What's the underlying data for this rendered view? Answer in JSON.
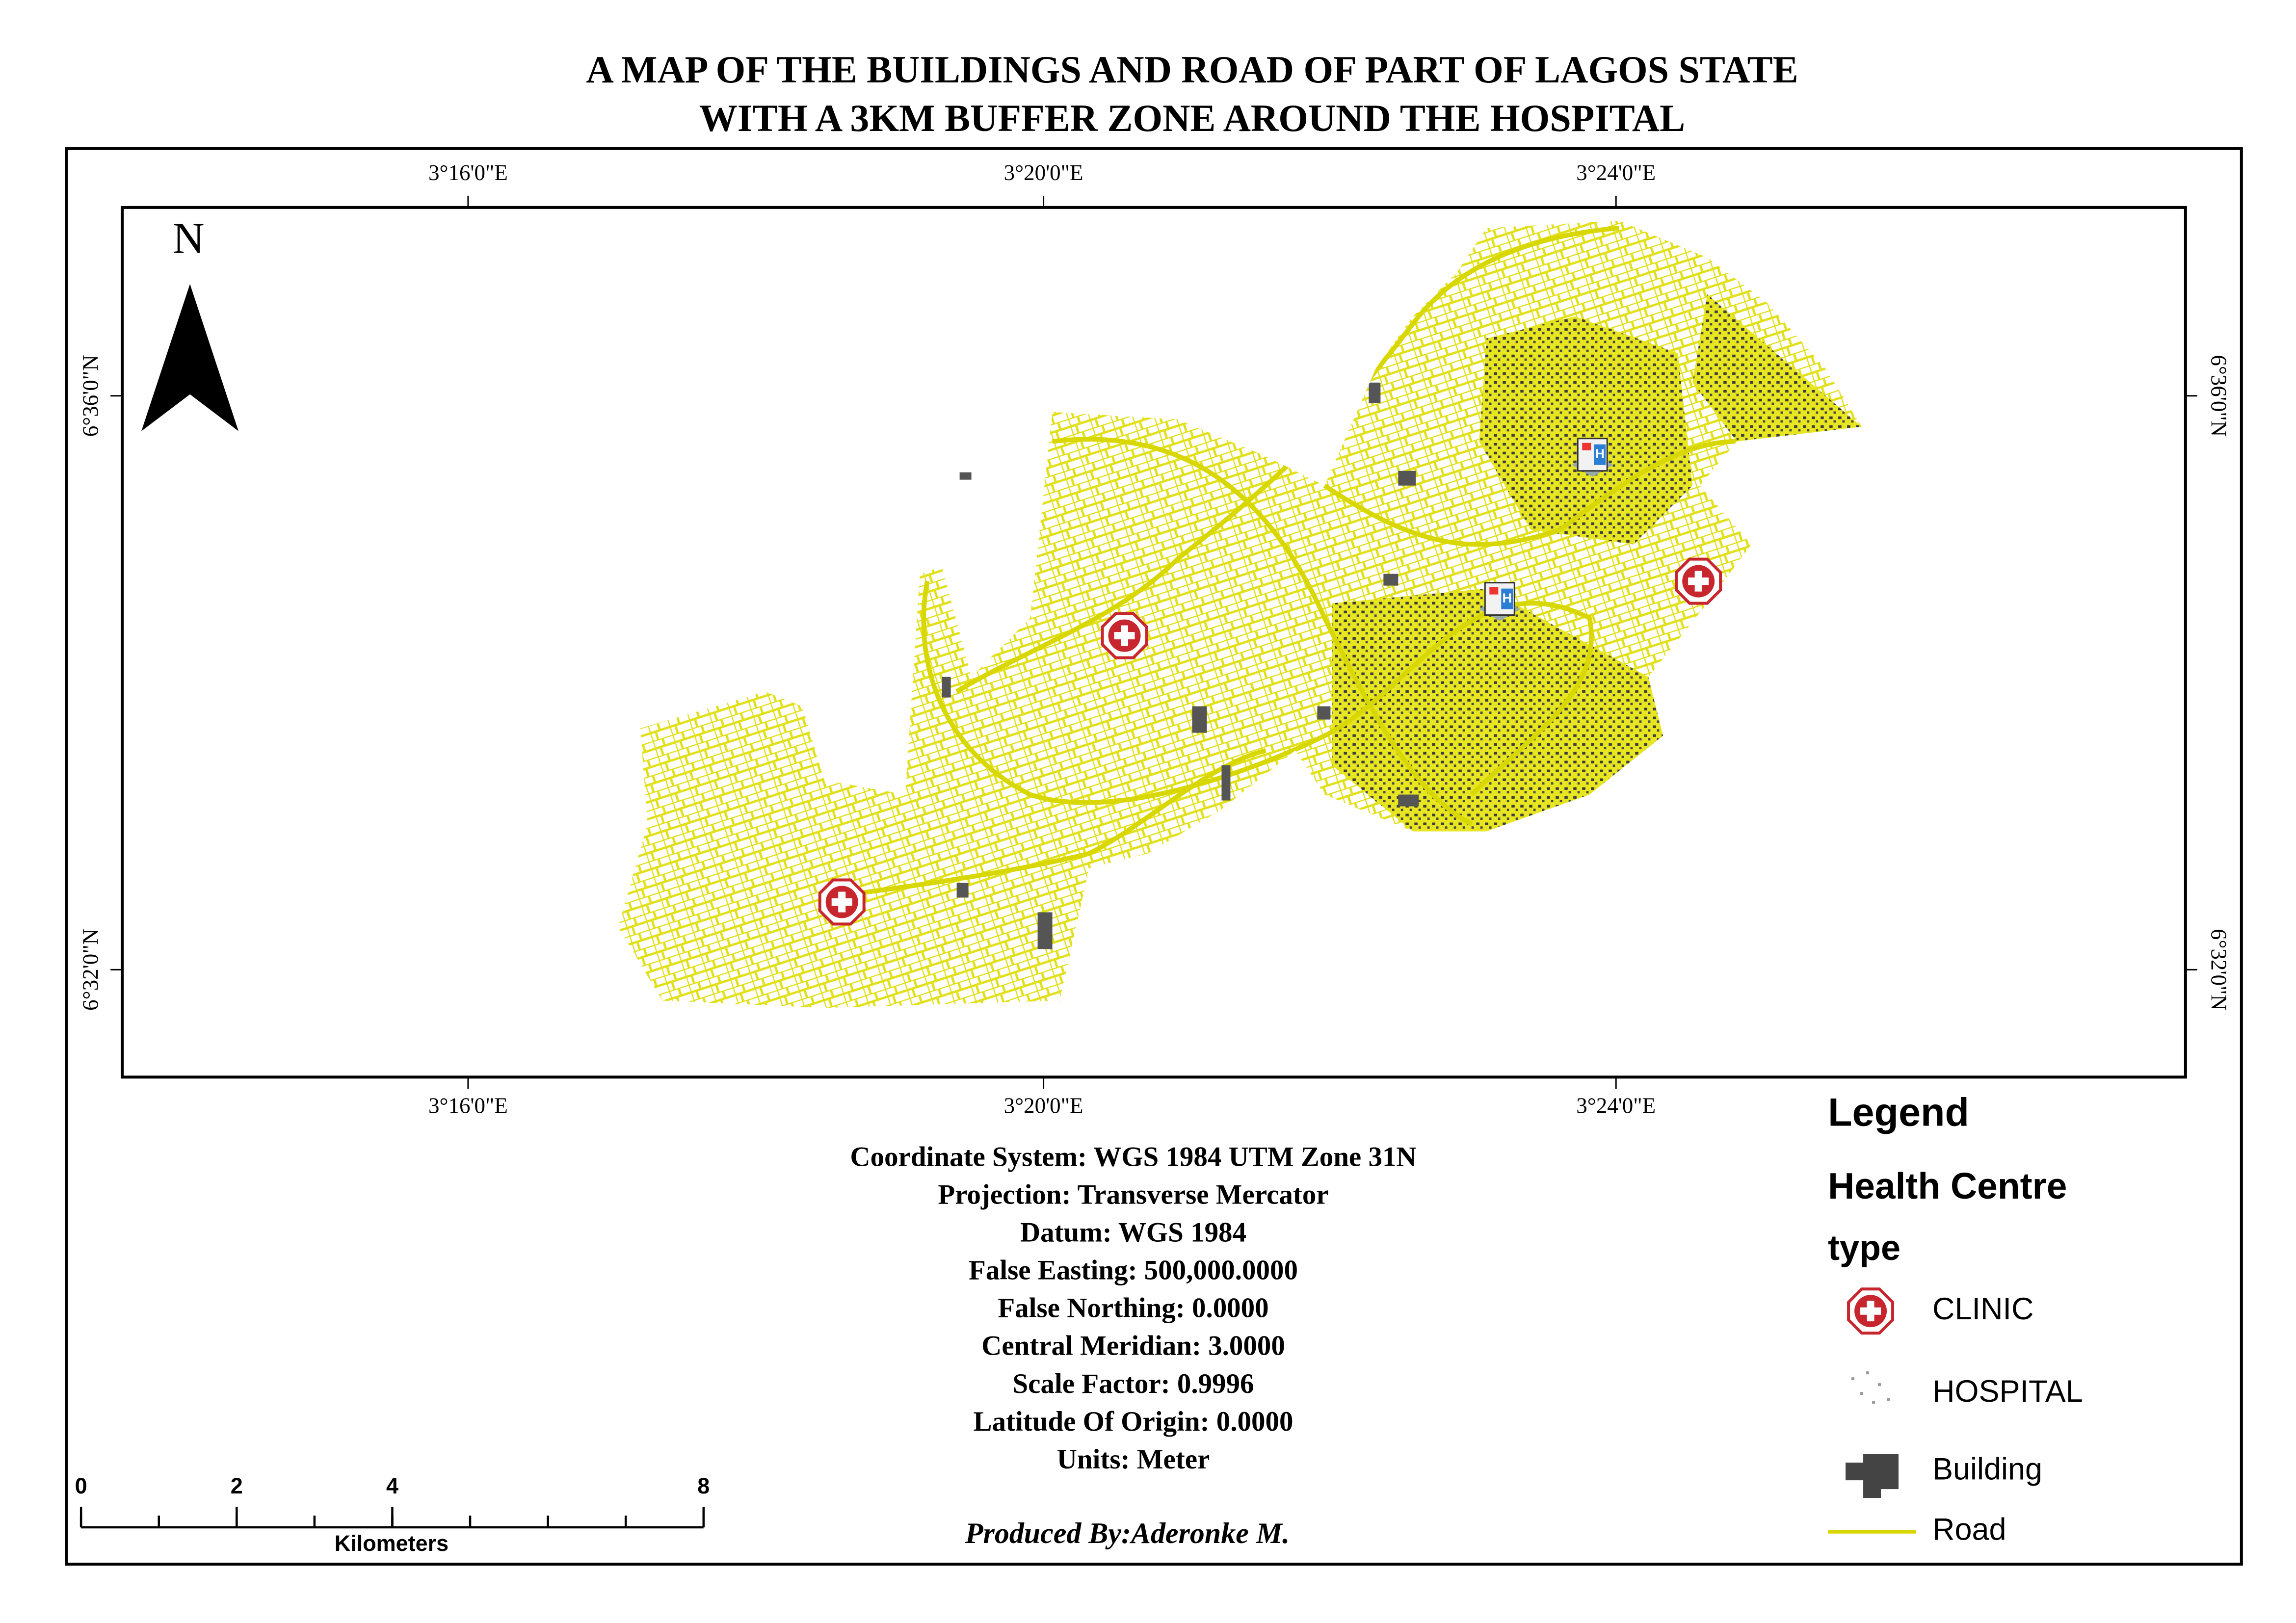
{
  "title": [
    "A MAP OF THE BUILDINGS AND ROAD OF PART OF LAGOS STATE",
    "WITH A 3KM BUFFER ZONE AROUND THE HOSPITAL"
  ],
  "graticule": {
    "top": [
      "3°16'0\"E",
      "3°20'0\"E",
      "3°24'0\"E"
    ],
    "bottom": [
      "3°16'0\"E",
      "3°20'0\"E",
      "3°24'0\"E"
    ],
    "left": [
      "6°36'0\"N",
      "6°32'0\"N"
    ],
    "right": [
      "6°36'0\"N",
      "6°32'0\"N"
    ]
  },
  "north_arrow": "N",
  "projection_info": [
    "Coordinate System: WGS 1984 UTM Zone 31N",
    "Projection: Transverse Mercator",
    "Datum: WGS 1984",
    "False Easting: 500,000.0000",
    "False Northing: 0.0000",
    "Central Meridian: 3.0000",
    "Scale Factor: 0.9996",
    "Latitude Of Origin: 0.0000",
    "Units: Meter"
  ],
  "scale_bar": {
    "ticks": [
      0,
      2,
      4,
      8
    ],
    "unit": "Kilometers"
  },
  "legend": {
    "title": "Legend",
    "layer": "Health Centre",
    "field": "type",
    "items": [
      "CLINIC",
      "HOSPITAL",
      "Building",
      "Road"
    ]
  },
  "credit": "Produced By:Aderonke M."
}
